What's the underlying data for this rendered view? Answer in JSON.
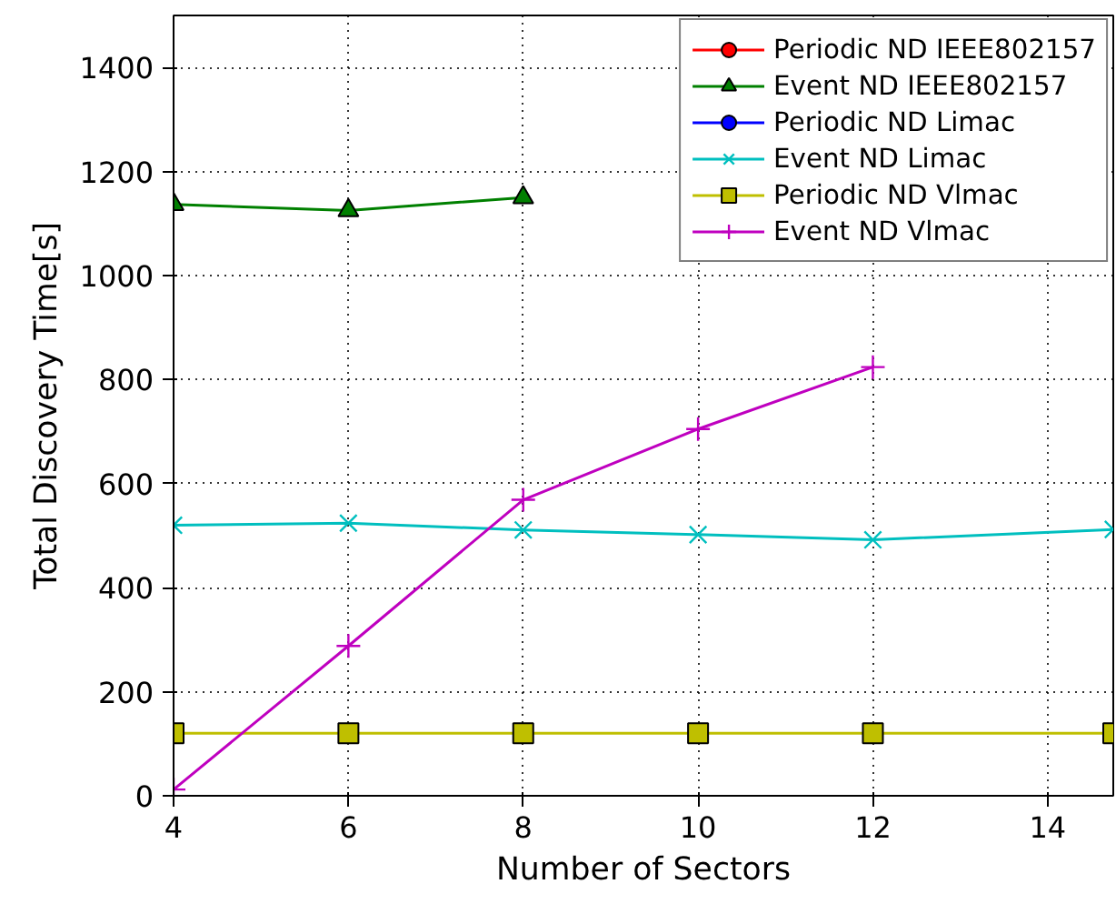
{
  "chart_data": {
    "type": "line",
    "xlabel": "Number of Sectors",
    "ylabel": "Total Discovery Time[s]",
    "x": [
      4,
      6,
      8,
      10,
      12,
      14.75
    ],
    "xlim": [
      4,
      14.75
    ],
    "xticks": [
      4,
      6,
      8,
      10,
      12,
      14
    ],
    "ylim": [
      0,
      1500
    ],
    "yticks": [
      0,
      200,
      400,
      600,
      800,
      1000,
      1200,
      1400
    ],
    "grid": true,
    "legend": "top right",
    "line_style": "solid",
    "series": [
      {
        "name": "Periodic ND IEEE802157",
        "color": "#ff0000",
        "marker": "circle",
        "values": [
          null,
          null,
          null,
          null,
          null,
          null
        ]
      },
      {
        "name": "Event ND IEEE802157",
        "color": "#008000",
        "marker": "triangle",
        "values": [
          1137,
          1125,
          1150,
          null,
          null,
          null
        ]
      },
      {
        "name": "Periodic ND Limac",
        "color": "#0000ff",
        "marker": "circle",
        "values": [
          null,
          null,
          null,
          null,
          null,
          null
        ]
      },
      {
        "name": "Event ND Limac",
        "color": "#00bfbf",
        "marker": "x",
        "values": [
          520,
          524,
          511,
          502,
          492,
          512
        ]
      },
      {
        "name": "Periodic ND Vlmac",
        "color": "#bfbf00",
        "marker": "square",
        "values": [
          120,
          120,
          120,
          120,
          120,
          120
        ]
      },
      {
        "name": "Event ND Vlmac",
        "color": "#bf00bf",
        "marker": "cross",
        "values": [
          12,
          288,
          569,
          705,
          824,
          null
        ]
      }
    ]
  }
}
